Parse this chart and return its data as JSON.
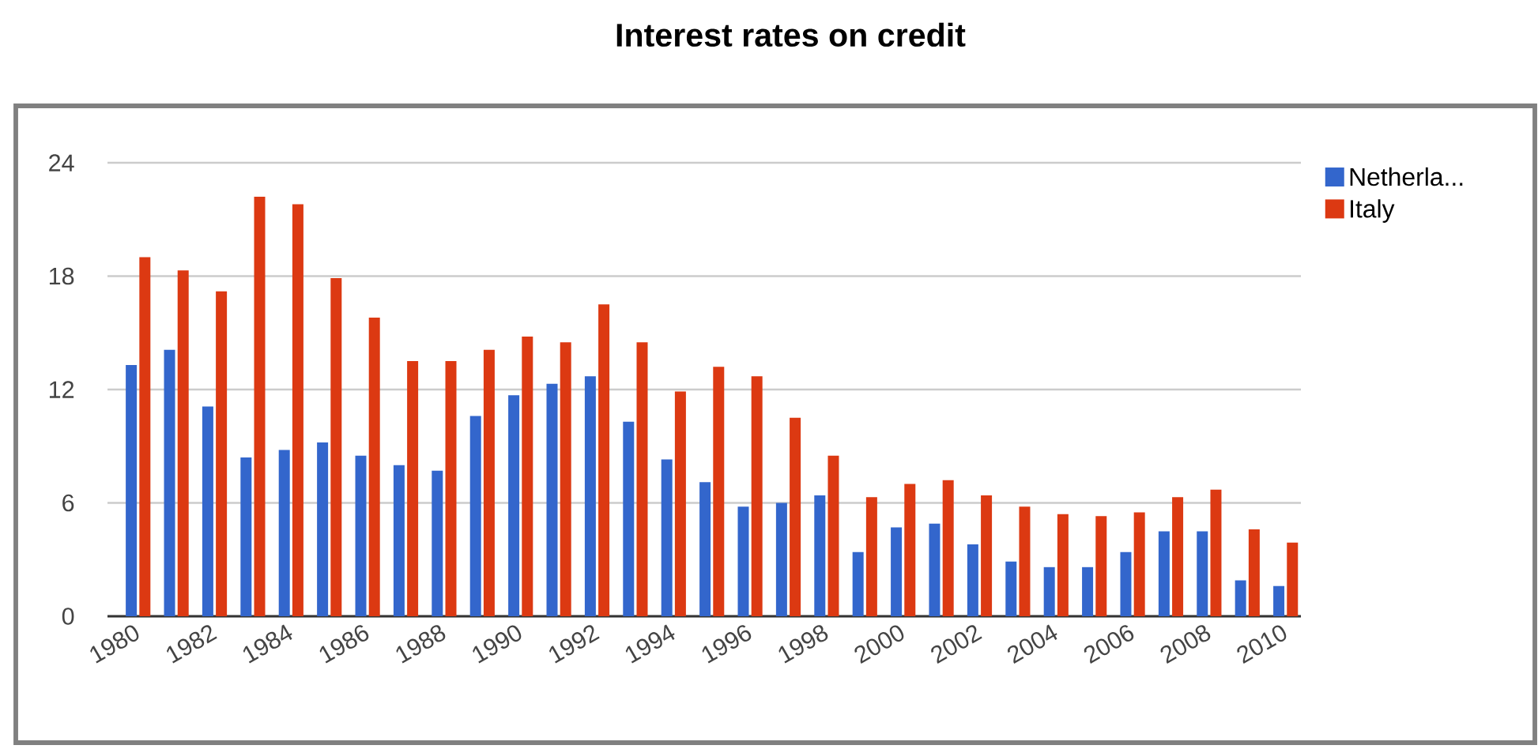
{
  "chart_data": {
    "type": "bar",
    "title": "Interest rates on credit",
    "x": [
      1980,
      1981,
      1982,
      1983,
      1984,
      1985,
      1986,
      1987,
      1988,
      1989,
      1990,
      1991,
      1992,
      1993,
      1994,
      1995,
      1996,
      1997,
      1998,
      1999,
      2000,
      2001,
      2002,
      2003,
      2004,
      2005,
      2006,
      2007,
      2008,
      2009,
      2010
    ],
    "xlim": [
      1979.2,
      2010.4
    ],
    "xticks": [
      1980,
      1982,
      1984,
      1986,
      1988,
      1990,
      1992,
      1994,
      1996,
      1998,
      2000,
      2002,
      2004,
      2006,
      2008,
      2010
    ],
    "ylim": [
      0,
      24
    ],
    "yticks": [
      0,
      6,
      12,
      18,
      24
    ],
    "series": [
      {
        "name": "Netherla...",
        "color": "#3366cc",
        "values": [
          13.3,
          14.1,
          11.1,
          8.4,
          8.8,
          9.2,
          8.5,
          8.0,
          7.7,
          10.6,
          11.7,
          12.3,
          12.7,
          10.3,
          8.3,
          7.1,
          5.8,
          6.0,
          6.4,
          3.4,
          4.7,
          4.9,
          3.8,
          2.9,
          2.6,
          2.6,
          3.4,
          4.5,
          4.5,
          1.9,
          1.6
        ]
      },
      {
        "name": "Italy",
        "color": "#dc3912",
        "values": [
          19.0,
          18.3,
          17.2,
          22.2,
          21.8,
          17.9,
          15.8,
          13.5,
          13.5,
          14.1,
          14.8,
          14.5,
          16.5,
          14.5,
          11.9,
          13.2,
          12.7,
          10.5,
          8.5,
          6.3,
          7.0,
          7.2,
          6.4,
          5.8,
          5.4,
          5.3,
          5.5,
          6.3,
          6.7,
          4.6,
          3.9
        ]
      }
    ],
    "grid": "y",
    "legend": "right"
  }
}
